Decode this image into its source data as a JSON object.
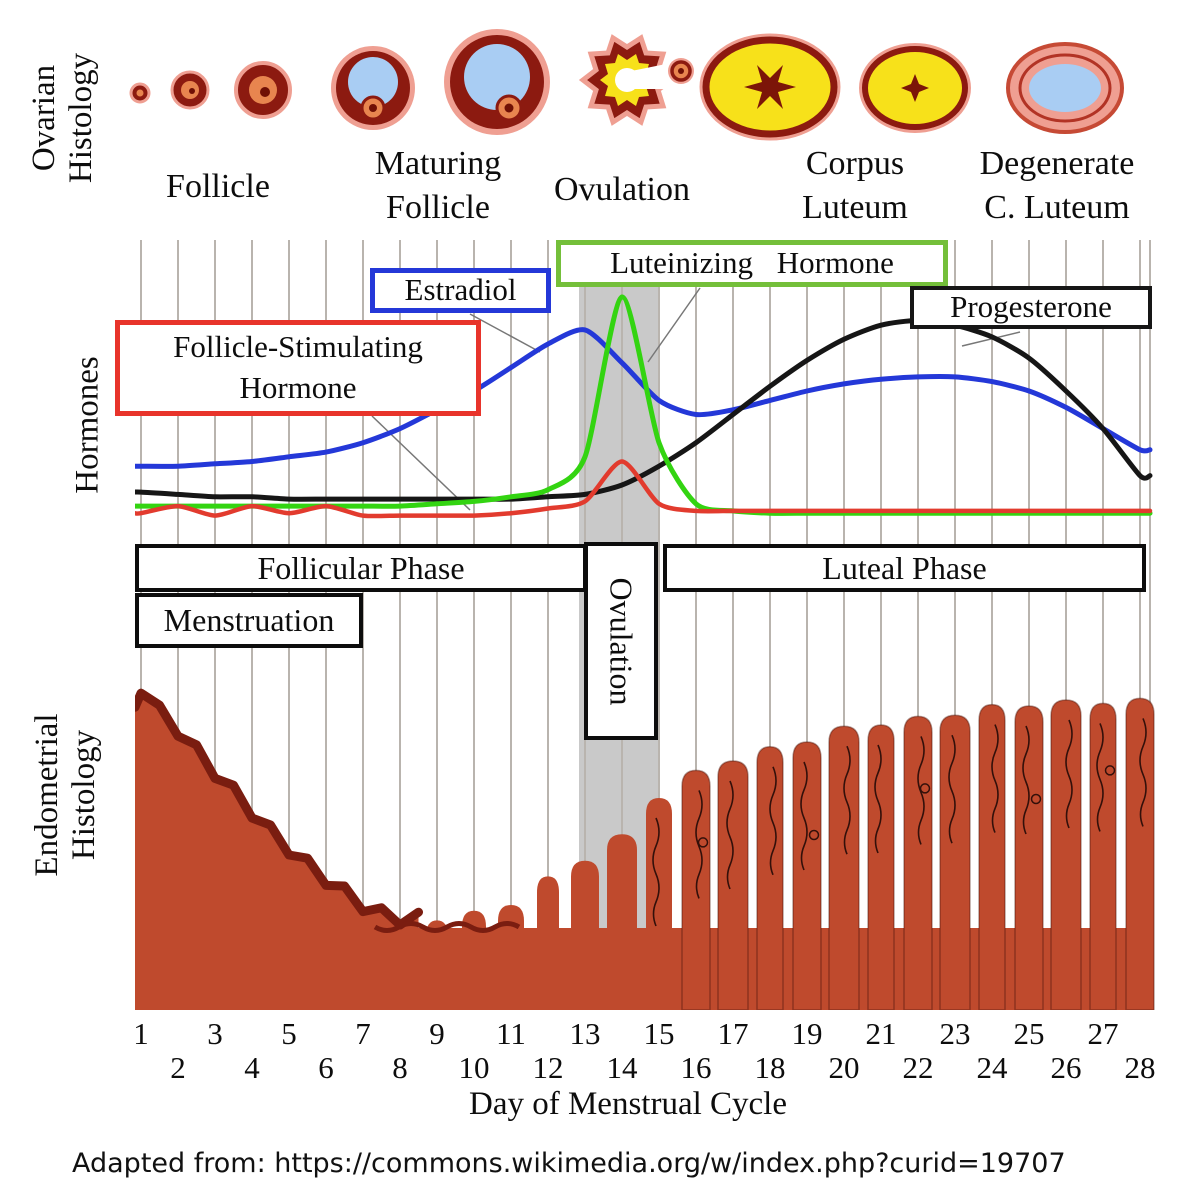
{
  "ovarian": {
    "axis_label": "Ovarian\nHistology",
    "stages": [
      {
        "label": "Follicle"
      },
      {
        "label": "Maturing\nFollicle"
      },
      {
        "label": "Ovulation"
      },
      {
        "label": "Corpus\nLuteum"
      },
      {
        "label": "Degenerate\nC. Luteum"
      }
    ]
  },
  "hormones": {
    "axis_label": "Hormones",
    "fsh_label": "Follicle-Stimulating\nHormone",
    "estradiol_label": "Estradiol",
    "lh_label": "Luteinizing Hormone",
    "progesterone_label": "Progesterone",
    "colors": {
      "fsh": "#e23b2e",
      "estradiol": "#2438d8",
      "lh": "#33d411",
      "progesterone": "#161616",
      "fsh_box_border": "#e8342b",
      "estradiol_box_border": "#2438d8",
      "lh_box_border": "#74bf3a",
      "progesterone_box_border": "#161616"
    }
  },
  "phases": {
    "follicular": "Follicular Phase",
    "ovulation": "Ovulation",
    "luteal": "Luteal Phase",
    "menstruation": "Menstruation"
  },
  "endometrial": {
    "axis_label": "Endometrial\nHistology",
    "fill_color": "#bf4a2d",
    "dark_edge_color": "#7a1d10"
  },
  "x_axis": {
    "days": [
      1,
      2,
      3,
      4,
      5,
      6,
      7,
      8,
      9,
      10,
      11,
      12,
      13,
      14,
      15,
      16,
      17,
      18,
      19,
      20,
      21,
      22,
      23,
      24,
      25,
      26,
      27,
      28
    ],
    "label": "Day of Menstrual Cycle"
  },
  "footer": {
    "text": "Adapted from: https://commons.wikimedia.org/w/index.php?curid=19707"
  },
  "chart_data": {
    "type": "line",
    "x": [
      1,
      2,
      3,
      4,
      5,
      6,
      7,
      8,
      9,
      10,
      11,
      12,
      13,
      14,
      15,
      16,
      17,
      18,
      19,
      20,
      21,
      22,
      23,
      24,
      25,
      26,
      27,
      28
    ],
    "xlabel": "Day of Menstrual Cycle",
    "x_range": [
      1,
      28
    ],
    "y_units": "relative level (0 = baseline, 100 = cycle maximum)",
    "gridlines": "vertical, one per day",
    "shaded_band": {
      "label": "Ovulation",
      "x_start": 13,
      "x_end": 15
    },
    "series": [
      {
        "id": "fsh",
        "name": "Follicle-Stimulating Hormone",
        "color": "#e23b2e",
        "values": [
          8,
          11,
          7,
          11,
          8,
          11,
          7,
          7,
          7,
          7,
          8,
          10,
          13,
          30,
          12,
          9,
          9,
          9,
          9,
          9,
          9,
          9,
          9,
          9,
          9,
          9,
          9,
          9
        ]
      },
      {
        "id": "estradiol",
        "name": "Estradiol",
        "color": "#2438d8",
        "values": [
          28,
          28,
          29,
          30,
          32,
          34,
          38,
          44,
          52,
          60,
          70,
          80,
          86,
          72,
          56,
          50,
          52,
          56,
          60,
          63,
          65,
          66,
          66,
          64,
          60,
          53,
          44,
          35
        ]
      },
      {
        "id": "lh",
        "name": "Luteinizing Hormone",
        "color": "#33d411",
        "values": [
          11,
          11,
          11,
          11,
          11,
          11,
          11,
          11,
          12,
          13,
          15,
          18,
          32,
          100,
          38,
          12,
          9,
          8,
          8,
          8,
          8,
          8,
          8,
          8,
          8,
          8,
          8,
          8
        ]
      },
      {
        "id": "progesterone",
        "name": "Progesterone",
        "color": "#161616",
        "values": [
          17,
          16,
          15,
          15,
          14,
          14,
          14,
          14,
          14,
          14,
          14,
          15,
          16,
          20,
          28,
          38,
          50,
          62,
          73,
          82,
          88,
          90,
          88,
          83,
          74,
          60,
          44,
          24
        ]
      },
      {
        "id": "endometrium",
        "name": "Endometrial thickness",
        "color": "#bf4a2d",
        "values": [
          88,
          78,
          66,
          55,
          45,
          36,
          29,
          25,
          26,
          27,
          30,
          36,
          42,
          48,
          60,
          66,
          70,
          72,
          75,
          78,
          80,
          81,
          83,
          84,
          85,
          85,
          86,
          86
        ]
      }
    ],
    "phases": [
      {
        "name": "Menstruation",
        "days": [
          1,
          7
        ]
      },
      {
        "name": "Follicular Phase",
        "days": [
          1,
          13
        ]
      },
      {
        "name": "Ovulation",
        "days": [
          13,
          15
        ]
      },
      {
        "name": "Luteal Phase",
        "days": [
          15,
          28
        ]
      }
    ]
  }
}
